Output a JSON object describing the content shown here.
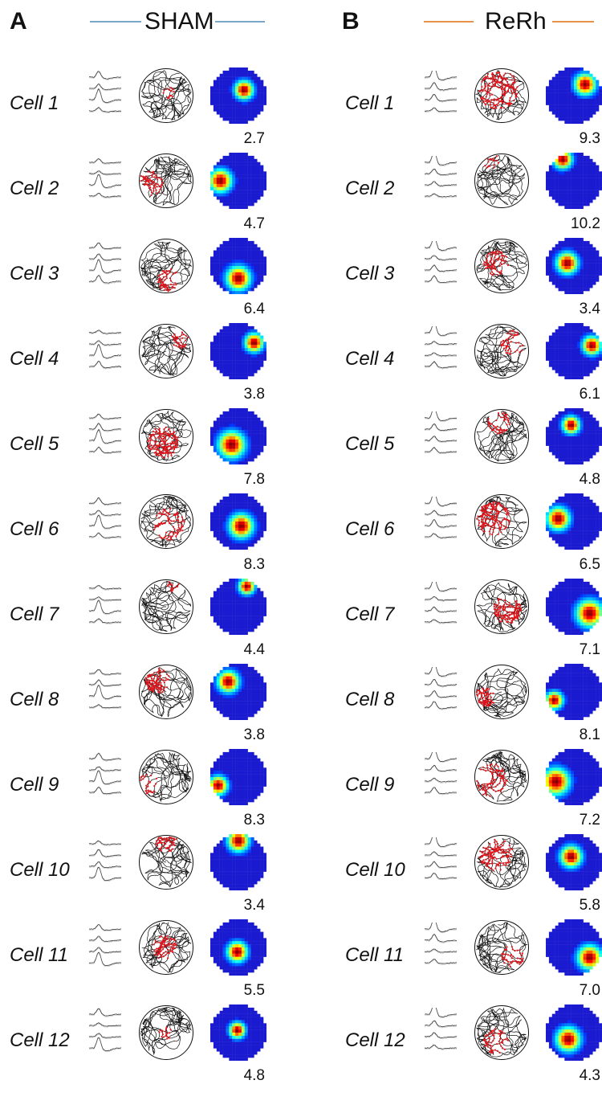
{
  "panels": [
    {
      "letter": "A",
      "title": "SHAM",
      "line_color": "#7aa6c8",
      "cells": [
        {
          "label": "Cell 1",
          "peak_rate": "2.7",
          "field": [
            0.6,
            0.4,
            0.14
          ],
          "path_red": [
            0.55,
            0.45,
            0.1
          ]
        },
        {
          "label": "Cell 2",
          "peak_rate": "4.7",
          "field": [
            0.18,
            0.5,
            0.17
          ],
          "path_red": [
            0.22,
            0.55,
            0.22
          ]
        },
        {
          "label": "Cell 3",
          "peak_rate": "6.4",
          "field": [
            0.5,
            0.72,
            0.18
          ],
          "path_red": [
            0.55,
            0.75,
            0.2
          ]
        },
        {
          "label": "Cell 4",
          "peak_rate": "3.8",
          "field": [
            0.78,
            0.35,
            0.14
          ],
          "path_red": [
            0.75,
            0.3,
            0.15
          ]
        },
        {
          "label": "Cell 5",
          "peak_rate": "7.8",
          "field": [
            0.38,
            0.65,
            0.2
          ],
          "path_red": [
            0.45,
            0.6,
            0.28
          ]
        },
        {
          "label": "Cell 6",
          "peak_rate": "8.3",
          "field": [
            0.55,
            0.58,
            0.18
          ],
          "path_red": [
            0.55,
            0.55,
            0.28
          ]
        },
        {
          "label": "Cell 7",
          "peak_rate": "4.4",
          "field": [
            0.65,
            0.14,
            0.12
          ],
          "path_red": [
            0.65,
            0.12,
            0.12
          ]
        },
        {
          "label": "Cell 8",
          "peak_rate": "3.8",
          "field": [
            0.32,
            0.32,
            0.16
          ],
          "path_red": [
            0.35,
            0.3,
            0.22
          ]
        },
        {
          "label": "Cell 9",
          "peak_rate": "8.3",
          "field": [
            0.14,
            0.65,
            0.14
          ],
          "path_red": [
            0.18,
            0.62,
            0.18
          ]
        },
        {
          "label": "Cell 10",
          "peak_rate": "3.4",
          "field": [
            0.5,
            0.12,
            0.16
          ],
          "path_red": [
            0.5,
            0.12,
            0.2
          ]
        },
        {
          "label": "Cell 11",
          "peak_rate": "5.5",
          "field": [
            0.48,
            0.58,
            0.15
          ],
          "path_red": [
            0.48,
            0.5,
            0.22
          ]
        },
        {
          "label": "Cell 12",
          "peak_rate": "4.8",
          "field": [
            0.48,
            0.46,
            0.12
          ],
          "path_red": [
            0.48,
            0.5,
            0.12
          ]
        }
      ]
    },
    {
      "letter": "B",
      "title": "ReRh",
      "line_color": "#e8924a",
      "cells": [
        {
          "label": "Cell 1",
          "peak_rate": "9.3",
          "field": [
            0.7,
            0.3,
            0.16
          ],
          "path_red": [
            0.45,
            0.4,
            0.35
          ]
        },
        {
          "label": "Cell 2",
          "peak_rate": "10.2",
          "field": [
            0.3,
            0.12,
            0.14
          ],
          "path_red": [
            0.3,
            0.12,
            0.16
          ]
        },
        {
          "label": "Cell 3",
          "peak_rate": "3.4",
          "field": [
            0.38,
            0.45,
            0.16
          ],
          "path_red": [
            0.4,
            0.45,
            0.22
          ]
        },
        {
          "label": "Cell 4",
          "peak_rate": "6.1",
          "field": [
            0.82,
            0.4,
            0.14
          ],
          "path_red": [
            0.7,
            0.35,
            0.22
          ]
        },
        {
          "label": "Cell 5",
          "peak_rate": "4.8",
          "field": [
            0.45,
            0.3,
            0.13
          ],
          "path_red": [
            0.45,
            0.25,
            0.2
          ]
        },
        {
          "label": "Cell 6",
          "peak_rate": "6.5",
          "field": [
            0.22,
            0.45,
            0.17
          ],
          "path_red": [
            0.35,
            0.45,
            0.3
          ]
        },
        {
          "label": "Cell 7",
          "peak_rate": "7.1",
          "field": [
            0.78,
            0.62,
            0.2
          ],
          "path_red": [
            0.6,
            0.55,
            0.25
          ]
        },
        {
          "label": "Cell 8",
          "peak_rate": "8.1",
          "field": [
            0.15,
            0.65,
            0.13
          ],
          "path_red": [
            0.2,
            0.6,
            0.18
          ]
        },
        {
          "label": "Cell 9",
          "peak_rate": "7.2",
          "field": [
            0.18,
            0.58,
            0.2
          ],
          "path_red": [
            0.3,
            0.55,
            0.3
          ]
        },
        {
          "label": "Cell 10",
          "peak_rate": "5.8",
          "field": [
            0.45,
            0.4,
            0.16
          ],
          "path_red": [
            0.4,
            0.35,
            0.3
          ]
        },
        {
          "label": "Cell 11",
          "peak_rate": "7.0",
          "field": [
            0.78,
            0.68,
            0.18
          ],
          "path_red": [
            0.7,
            0.65,
            0.2
          ]
        },
        {
          "label": "Cell 12",
          "peak_rate": "4.3",
          "field": [
            0.4,
            0.62,
            0.18
          ],
          "path_red": [
            0.4,
            0.65,
            0.22
          ]
        }
      ]
    }
  ]
}
